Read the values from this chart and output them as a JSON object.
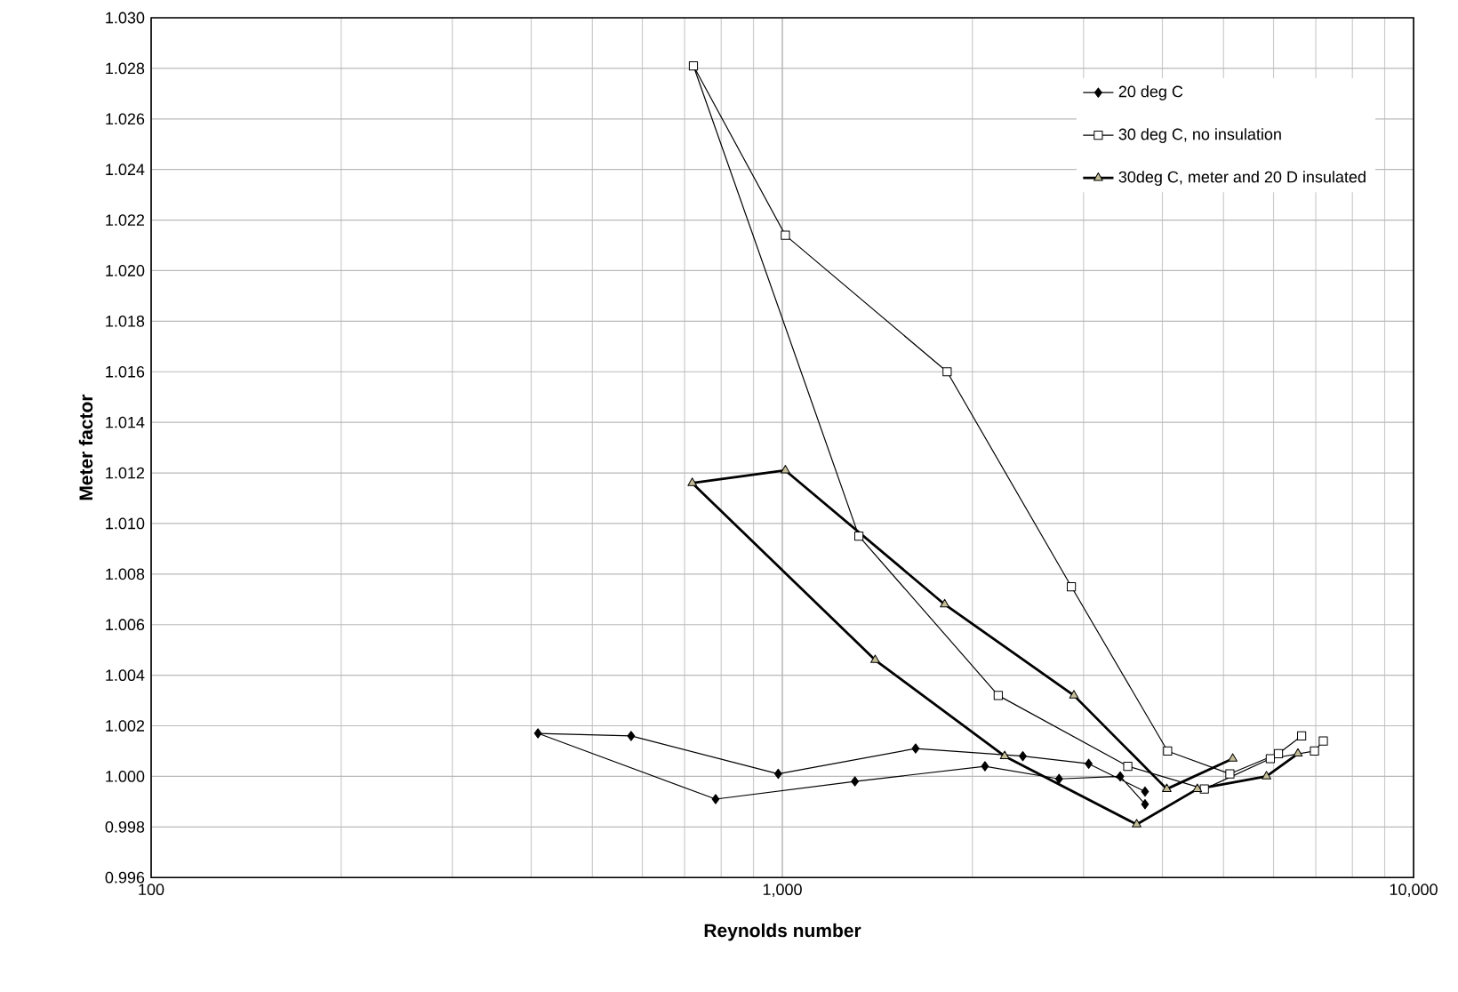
{
  "chart_data": {
    "type": "line",
    "xlabel": "Reynolds number",
    "ylabel": "Meter factor",
    "log": "x",
    "xlim": [
      100,
      10000
    ],
    "xticks": [
      100,
      {
        "value": 1000,
        "label": "1,000"
      },
      {
        "value": 10000,
        "label": "10,000"
      }
    ],
    "ylim": [
      0.996,
      1.03
    ],
    "yticks": [
      0.996,
      0.998,
      {
        "value": 1,
        "label": "1.000"
      },
      1.002,
      1.004,
      1.006,
      1.008,
      {
        "value": 1.01,
        "label": "1.010"
      },
      1.012,
      1.014,
      1.016,
      1.018,
      {
        "value": 1.02,
        "label": "1.020"
      },
      1.022,
      1.024,
      1.026,
      1.028,
      {
        "value": 1.03,
        "label": "1.030"
      }
    ],
    "grid": true,
    "legend": "top right",
    "series": [
      {
        "name": "20 deg C",
        "color": "#000000",
        "marker": "diamond",
        "x": [
          3755,
          3057,
          2404,
          1626,
          985,
          576,
          410,
          784,
          1303,
          2094,
          2744,
          3430,
          3755
        ],
        "values": [
          0.9994,
          1.0005,
          1.0008,
          1.0011,
          1.0001,
          1.0016,
          1.0017,
          0.9991,
          0.9998,
          1.0004,
          0.9999,
          1.0,
          0.9989
        ]
      },
      {
        "name": "30 deg C, no insulation",
        "color": "#000000",
        "marker": "square",
        "x": [
          6648,
          6109,
          5117,
          4077,
          2870,
          1824,
          1011,
          723,
          1322,
          2198,
          3526,
          4662,
          5930,
          6967,
          7195
        ],
        "values": [
          1.0016,
          1.0009,
          1.0001,
          1.001,
          1.0075,
          1.016,
          1.0214,
          1.0281,
          1.0095,
          1.0032,
          1.0004,
          0.9995,
          1.0007,
          1.001,
          1.0014
        ]
      },
      {
        "name": "30deg C, meter and 20 D insulated",
        "color": "#000000",
        "marker": "triangle",
        "x": [
          5170,
          4065,
          2897,
          1808,
          1011,
          720,
          1403,
          2250,
          3642,
          4544,
          5848,
          6559
        ],
        "values": [
          1.0007,
          0.9995,
          1.0032,
          1.0068,
          1.0121,
          1.0116,
          1.0046,
          1.0008,
          0.9981,
          0.9995,
          1.0,
          1.0009
        ]
      }
    ]
  }
}
